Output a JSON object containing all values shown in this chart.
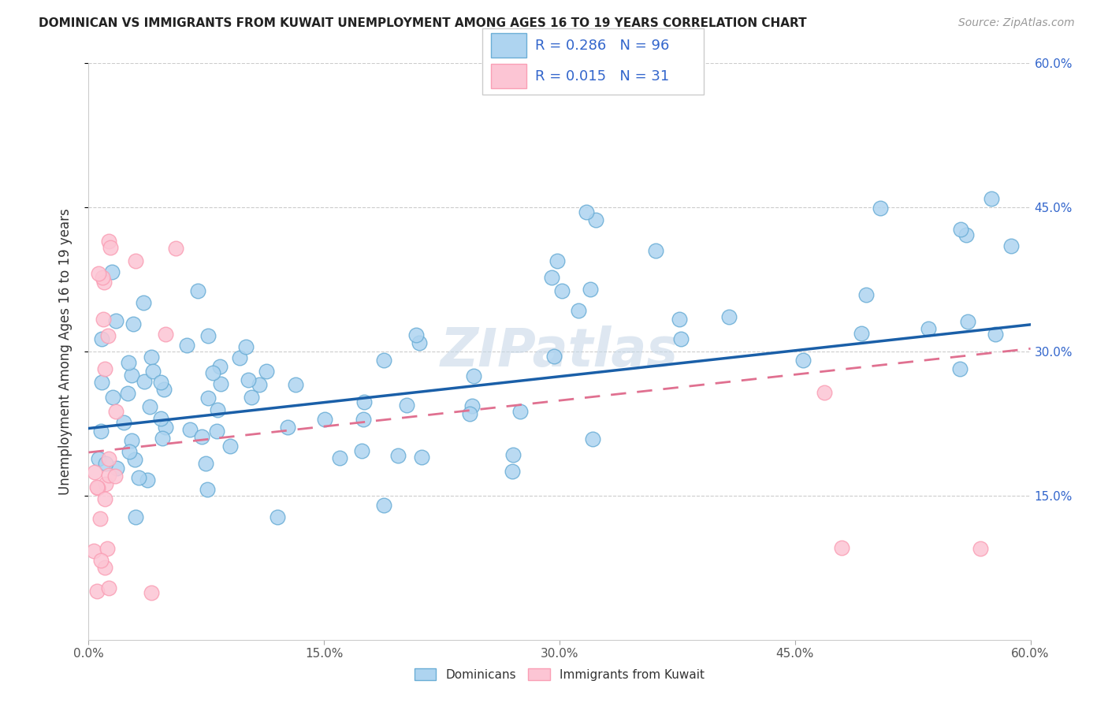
{
  "title": "DOMINICAN VS IMMIGRANTS FROM KUWAIT UNEMPLOYMENT AMONG AGES 16 TO 19 YEARS CORRELATION CHART",
  "source": "Source: ZipAtlas.com",
  "ylabel": "Unemployment Among Ages 16 to 19 years",
  "xlim": [
    0.0,
    0.6
  ],
  "ylim": [
    0.0,
    0.6
  ],
  "xtick_vals": [
    0.0,
    0.15,
    0.3,
    0.45,
    0.6
  ],
  "xtick_labels": [
    "0.0%",
    "15.0%",
    "30.0%",
    "45.0%",
    "60.0%"
  ],
  "ytick_vals": [
    0.15,
    0.3,
    0.45,
    0.6
  ],
  "ytick_labels": [
    "15.0%",
    "30.0%",
    "45.0%",
    "60.0%"
  ],
  "legend_text_color": "#3366cc",
  "blue_fill": "#aed4f0",
  "blue_edge": "#6baed6",
  "pink_fill": "#fcc5d4",
  "pink_edge": "#fa9fb5",
  "blue_line_color": "#1a5fa8",
  "pink_line_color": "#e07090",
  "watermark": "ZIPatlas",
  "watermark_color": "#c8d8e8"
}
